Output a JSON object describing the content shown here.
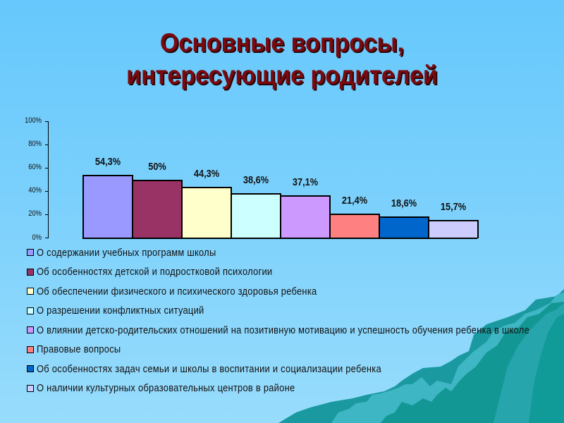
{
  "slide": {
    "title_line1": "Основные вопросы,",
    "title_line2": "интересующие родителей"
  },
  "chart_data": {
    "type": "bar",
    "title": "Основные вопросы, интересующие родителей",
    "xlabel": "",
    "ylabel": "",
    "ylim": [
      0,
      100
    ],
    "yticks": [
      "0%",
      "20%",
      "40%",
      "60%",
      "80%",
      "100%"
    ],
    "grid": false,
    "legend_position": "bottom",
    "categories": [
      "О содержании учебных программ школы",
      "Об особенностях детской и подростковой психологии",
      "Об обеспечении физического и психического здоровья ребенка",
      "О разрешении конфликтных ситуаций",
      "О влиянии детско-родительских отношений на позитивную мотивацию и успешность обучения ребенка в школе",
      "Правовые вопросы",
      "Об особенностях задач семьи и школы в воспитании и социализации ребенка",
      "О наличии культурных образовательных центров в районе"
    ],
    "values": [
      54.3,
      50,
      44.3,
      38.6,
      37.1,
      21.4,
      18.6,
      15.7
    ],
    "data_labels": [
      "54,3%",
      "50%",
      "44,3%",
      "38,6%",
      "37,1%",
      "21,4%",
      "18,6%",
      "15,7%"
    ],
    "colors": [
      "#9999ff",
      "#993366",
      "#ffffcc",
      "#ccffff",
      "#cc99ff",
      "#ff8080",
      "#0066cc",
      "#ccccff"
    ]
  }
}
